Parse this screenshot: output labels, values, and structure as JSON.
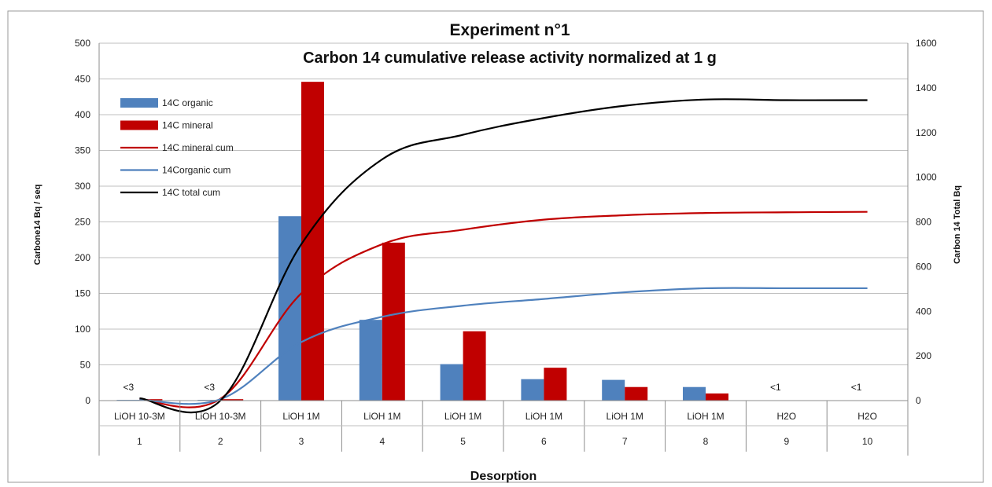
{
  "chart_data": {
    "type": "bar",
    "title": "Experiment n°1",
    "subtitle": "Carbon 14  cumulative release activity normalized at 1 g",
    "xlabel": "Desorption",
    "ylabel": "Carbone14 Bq / seq",
    "y2label": "Carbon 14 Total Bq",
    "ylim": [
      0,
      500
    ],
    "y2lim": [
      0,
      1600
    ],
    "yticks": [
      0,
      50,
      100,
      150,
      200,
      250,
      300,
      350,
      400,
      450,
      500
    ],
    "y2ticks": [
      0,
      200,
      400,
      600,
      800,
      1000,
      1200,
      1400,
      1600
    ],
    "grid": true,
    "legend_position": "top-left",
    "categories": [
      "1",
      "2",
      "3",
      "4",
      "5",
      "6",
      "7",
      "8",
      "9",
      "10"
    ],
    "category_groups": [
      "LiOH 10-3M",
      "LiOH 10-3M",
      "LiOH 1M",
      "LiOH 1M",
      "LiOH 1M",
      "LiOH 1M",
      "LiOH 1M",
      "LiOH 1M",
      "H2O",
      "H2O"
    ],
    "series": [
      {
        "name": "14C organic",
        "type": "bar",
        "axis": "left",
        "color": "#4f81bd",
        "values": [
          1,
          1,
          258,
          113,
          51,
          30,
          29,
          19,
          0,
          0
        ]
      },
      {
        "name": "14C mineral",
        "type": "bar",
        "axis": "left",
        "color": "#c00000",
        "values": [
          2,
          2,
          446,
          221,
          97,
          46,
          19,
          10,
          0,
          0
        ]
      },
      {
        "name": "14C mineral cum",
        "type": "line",
        "axis": "right",
        "color": "#c00000",
        "values": [
          6,
          8,
          480,
          700,
          765,
          810,
          830,
          840,
          843,
          845
        ]
      },
      {
        "name": "14Corganic cum",
        "type": "line",
        "axis": "right",
        "color": "#4f81bd",
        "values": [
          4,
          6,
          262,
          375,
          425,
          455,
          485,
          503,
          503,
          503
        ]
      },
      {
        "name": "14C total cum",
        "type": "line",
        "axis": "right",
        "color": "#000000",
        "values": [
          10,
          0,
          700,
          1080,
          1190,
          1265,
          1320,
          1348,
          1345,
          1345
        ]
      }
    ],
    "annotations": [
      {
        "category": "1",
        "text": "<3"
      },
      {
        "category": "2",
        "text": "<3"
      },
      {
        "category": "9",
        "text": "<1"
      },
      {
        "category": "10",
        "text": "<1"
      }
    ]
  }
}
